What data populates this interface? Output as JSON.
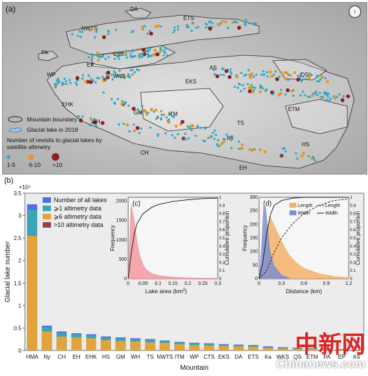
{
  "panel_a": {
    "label": "(a)",
    "regions": [
      "DA",
      "ETS",
      "NWTS",
      "PA",
      "CTS",
      "EP",
      "WP",
      "WKS",
      "AS",
      "QS",
      "EKS",
      "ITM",
      "ETM",
      "TS",
      "Ny",
      "HS",
      "GM",
      "CH",
      "EH",
      "EHK",
      "WH"
    ],
    "legend": {
      "boundary": "Mountain boundary",
      "glacial_lake": "Glacial lake in 2018",
      "revisits_title": "Number of revisits to glacial lakes by satellite altimetry",
      "revisit_classes": [
        "1-5",
        "6-10",
        ">10"
      ]
    },
    "colors": {
      "c1": "#2aa7c9",
      "c2": "#e8951c",
      "c3": "#8c1f1f",
      "boundary": "#2b2b2b",
      "lake": "#2a78c2"
    }
  },
  "panel_b": {
    "label": "(b)",
    "exponent_label": "×10⁴",
    "ylabel": "Glacial lake number",
    "xlabel": "Mountain",
    "legend": [
      "Number of all lakes",
      "⩾1 altimetry data",
      "⩾6 altimetry data",
      ">10 altimetry data"
    ],
    "colors": {
      "all": "#4e6fe8",
      "ge1": "#3aa6b8",
      "ge6": "#e2a33a",
      "gt10": "#9b3f45"
    }
  },
  "panel_c": {
    "label": "(c)",
    "xlabel": "Lake area (km",
    "xlabel_sup": "2",
    "xlabel_end": ")",
    "ylabel": "Frequency",
    "y2label": "Cumulative proportion"
  },
  "panel_d": {
    "label": "(d)",
    "xlabel": "Distance (km)",
    "ylabel": "Frequency",
    "y2label": "Cumulative proportion",
    "legend": [
      "Length",
      "Length",
      "Width",
      "Width"
    ]
  },
  "watermark": {
    "logo_text": "中新网",
    "url": "Chinanews.com"
  },
  "chart_data": [
    {
      "type": "bar",
      "categories": [
        "HMA",
        "Ny",
        "CH",
        "EH",
        "EHK",
        "HS",
        "GM",
        "WH",
        "TS",
        "NWTS",
        "ITM",
        "WP",
        "CTS",
        "EKS",
        "DA",
        "ETS",
        "Ka",
        "WKS",
        "QS",
        "ETM",
        "PA",
        "EP",
        "AS"
      ],
      "series": [
        {
          "name": "Number of all lakes",
          "values": [
            3.25,
            0.55,
            0.42,
            0.38,
            0.36,
            0.31,
            0.29,
            0.27,
            0.25,
            0.22,
            0.19,
            0.17,
            0.16,
            0.14,
            0.13,
            0.12,
            0.09,
            0.07,
            0.06,
            0.05,
            0.04,
            0.03,
            0.01
          ]
        },
        {
          "name": "⩾1 altimetry data",
          "values": [
            3.13,
            0.52,
            0.39,
            0.36,
            0.34,
            0.29,
            0.27,
            0.25,
            0.23,
            0.21,
            0.18,
            0.16,
            0.15,
            0.13,
            0.12,
            0.11,
            0.08,
            0.06,
            0.05,
            0.045,
            0.035,
            0.025,
            0.008
          ]
        },
        {
          "name": "⩾6 altimetry data",
          "values": [
            2.55,
            0.42,
            0.31,
            0.29,
            0.27,
            0.23,
            0.21,
            0.2,
            0.18,
            0.17,
            0.14,
            0.12,
            0.11,
            0.1,
            0.09,
            0.085,
            0.06,
            0.045,
            0.04,
            0.035,
            0.025,
            0.018,
            0.005
          ]
        },
        {
          "name": ">10 altimetry data",
          "values": [
            3.25,
            0.55,
            0.42,
            0.38,
            0.36,
            0.31,
            0.29,
            0.27,
            0.25,
            0.22,
            0.19,
            0.17,
            0.16,
            0.14,
            0.13,
            0.12,
            0.09,
            0.07,
            0.06,
            0.05,
            0.04,
            0.03,
            0.01
          ]
        }
      ],
      "xlabel": "Mountain",
      "ylabel": "Glacial lake number",
      "ylim": [
        0,
        3.5
      ],
      "yticks": [
        0,
        0.5,
        1,
        1.5,
        2,
        2.5,
        3,
        3.5
      ],
      "y_multiplier": "×10⁴"
    },
    {
      "type": "area",
      "xlabel": "Lake area (km2)",
      "ylabel": "Frequency",
      "y2label": "Cumulative proportion",
      "xlim": [
        0,
        0.3
      ],
      "xticks": [
        0,
        0.05,
        0.1,
        0.15,
        0.2,
        0.25,
        0.3
      ],
      "ylim": [
        0,
        2100
      ],
      "yticks": [
        0,
        500,
        1000,
        1500,
        2000
      ],
      "y2ticks": [
        0,
        0.1,
        0.2,
        0.3,
        0.4,
        0.5,
        0.6,
        0.7,
        0.8,
        0.9,
        1
      ],
      "histogram": {
        "x": [
          0.01,
          0.02,
          0.03,
          0.04,
          0.05,
          0.06,
          0.08,
          0.1,
          0.15,
          0.2,
          0.25,
          0.3
        ],
        "values": [
          1900,
          1500,
          900,
          550,
          350,
          230,
          130,
          80,
          40,
          20,
          12,
          8
        ]
      },
      "cdf": {
        "x": [
          0,
          0.01,
          0.02,
          0.03,
          0.05,
          0.08,
          0.1,
          0.15,
          0.2,
          0.25,
          0.3
        ],
        "values": [
          0,
          0.3,
          0.55,
          0.68,
          0.8,
          0.88,
          0.91,
          0.95,
          0.97,
          0.985,
          0.99
        ]
      }
    },
    {
      "type": "area",
      "xlabel": "Distance (km)",
      "ylabel": "Frequency",
      "y2label": "Cumulative proportion",
      "xlim": [
        0,
        1.2
      ],
      "xticks": [
        0,
        0.3,
        0.6,
        0.9,
        1.2
      ],
      "ylim": [
        0,
        300
      ],
      "yticks": [
        0,
        50,
        100,
        150,
        200,
        250,
        300
      ],
      "y2ticks": [
        0,
        0.1,
        0.2,
        0.3,
        0.4,
        0.5,
        0.6,
        0.7,
        0.8,
        0.9,
        1
      ],
      "series": [
        {
          "name": "Length",
          "kind": "histogram",
          "x": [
            0.05,
            0.1,
            0.15,
            0.2,
            0.3,
            0.4,
            0.5,
            0.6,
            0.8,
            1.0,
            1.2
          ],
          "values": [
            40,
            180,
            230,
            200,
            140,
            90,
            60,
            40,
            20,
            10,
            5
          ]
        },
        {
          "name": "Width",
          "kind": "histogram",
          "x": [
            0.03,
            0.06,
            0.09,
            0.12,
            0.15,
            0.2,
            0.3,
            0.4
          ],
          "values": [
            120,
            280,
            260,
            180,
            100,
            50,
            15,
            5
          ]
        },
        {
          "name": "Length",
          "kind": "cdf",
          "x": [
            0,
            0.1,
            0.2,
            0.3,
            0.45,
            0.6,
            0.8,
            1.0,
            1.2
          ],
          "values": [
            0,
            0.1,
            0.32,
            0.5,
            0.68,
            0.8,
            0.9,
            0.96,
            0.98
          ]
        },
        {
          "name": "Width",
          "kind": "cdf",
          "x": [
            0,
            0.05,
            0.1,
            0.15,
            0.2,
            0.3,
            0.45,
            0.6,
            1.2
          ],
          "values": [
            0,
            0.2,
            0.55,
            0.78,
            0.9,
            0.96,
            0.99,
            1.0,
            1.0
          ]
        }
      ]
    }
  ]
}
